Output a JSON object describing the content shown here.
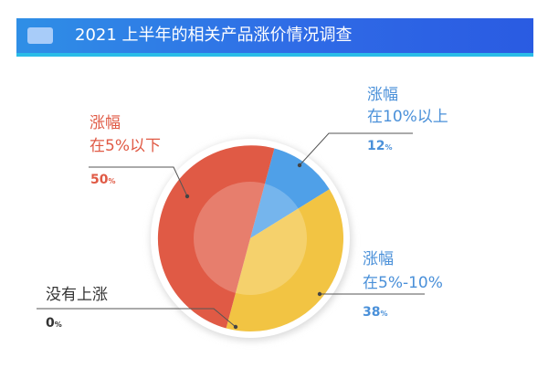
{
  "header": {
    "title": "2021 上半年的相关产品涨价情况调查",
    "bar_color": "#2f6be6",
    "stripe_color": "#2abce8"
  },
  "chart_data": {
    "type": "pie",
    "title": "2021 上半年的相关产品涨价情况调查",
    "series": [
      {
        "line1": "涨幅",
        "line2": "在10%以上",
        "value": 12,
        "color": "#4fa0e8",
        "label_color": "#4a90d9"
      },
      {
        "line1": "涨幅",
        "line2": "在5%-10%",
        "value": 38,
        "color": "#f2c443",
        "label_color": "#4a90d9"
      },
      {
        "line1": "没有上涨",
        "line2": "",
        "value": 0,
        "color": "#888888",
        "label_color": "#333333"
      },
      {
        "line1": "涨幅",
        "line2": "在5%以下",
        "value": 50,
        "color": "#e05a45",
        "label_color": "#e05a45"
      }
    ],
    "value_suffix": "%"
  }
}
